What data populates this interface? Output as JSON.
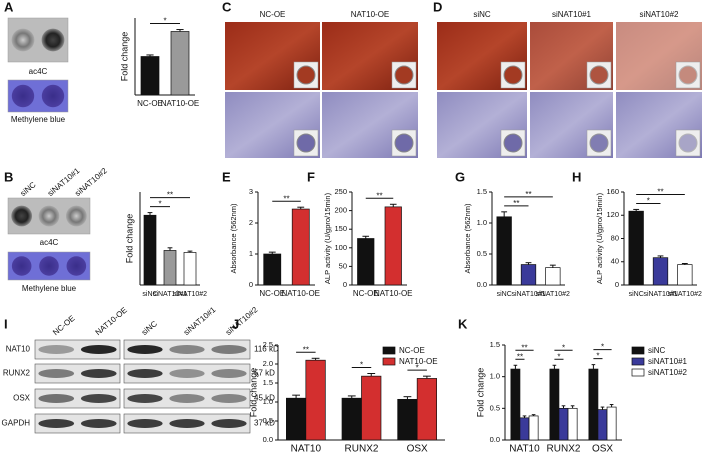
{
  "panels": {
    "letters": [
      "A",
      "B",
      "C",
      "D",
      "E",
      "F",
      "G",
      "H",
      "I",
      "J",
      "K"
    ],
    "A": {
      "blot_labels": [
        "ac4C",
        "Methylene blue"
      ]
    },
    "B": {
      "column_labels": [
        "siNC",
        "siNAT10#1",
        "siNAT10#2"
      ],
      "blot_labels": [
        "ac4C",
        "Methylene blue"
      ]
    },
    "C": {
      "labels": [
        "NC-OE",
        "NAT10-OE"
      ]
    },
    "D": {
      "labels": [
        "siNC",
        "siNAT10#1",
        "siNAT10#2"
      ]
    },
    "I": {
      "columns": [
        "NC-OE",
        "NAT10-OE",
        "siNC",
        "siNAT10#1",
        "siNAT10#2"
      ],
      "rows": [
        "NAT10",
        "RUNX2",
        "OSX",
        "GAPDH"
      ],
      "sizes": [
        "116 kD",
        "57 kD",
        "45 kD",
        "37 kD"
      ]
    }
  },
  "chart_data": [
    {
      "type": "bar",
      "ylabel": "Fold change",
      "categories": [
        "NC-OE",
        "NAT10-OE"
      ],
      "values": [
        1.0,
        1.65
      ],
      "errors": [
        0.04,
        0.05
      ],
      "colors": [
        "#111111",
        "#9a9a9a"
      ],
      "ylim": [
        0,
        2
      ],
      "significance": [
        {
          "from": 0,
          "to": 1,
          "label": "*"
        }
      ]
    },
    {
      "type": "bar",
      "ylabel": "Fold change",
      "categories": [
        "siNC",
        "siNAT10#1",
        "siNAT10#2"
      ],
      "values": [
        1.05,
        0.52,
        0.49
      ],
      "errors": [
        0.04,
        0.04,
        0.02
      ],
      "colors": [
        "#111111",
        "#9a9a9a",
        "#ffffff"
      ],
      "ylim": [
        0,
        1.4
      ],
      "significance": [
        {
          "from": 0,
          "to": 1,
          "label": "*"
        },
        {
          "from": 0,
          "to": 2,
          "label": "**"
        }
      ]
    },
    {
      "type": "bar",
      "ylabel": "Absorbance (562nm)",
      "categories": [
        "NC-OE",
        "NAT10-OE"
      ],
      "values": [
        1.0,
        2.45
      ],
      "errors": [
        0.06,
        0.06
      ],
      "colors": [
        "#111111",
        "#d32f2f"
      ],
      "ylim": [
        0,
        3
      ],
      "yticks": [
        0,
        1,
        2,
        3
      ],
      "significance": [
        {
          "from": 0,
          "to": 1,
          "label": "**"
        }
      ]
    },
    {
      "type": "bar",
      "ylabel": "ALP activity (U/gpro/15min)",
      "categories": [
        "NC-OE",
        "NAT10-OE"
      ],
      "values": [
        125,
        210
      ],
      "errors": [
        6,
        7
      ],
      "colors": [
        "#111111",
        "#d32f2f"
      ],
      "ylim": [
        0,
        250
      ],
      "yticks": [
        0,
        50,
        100,
        150,
        200,
        250
      ],
      "significance": [
        {
          "from": 0,
          "to": 1,
          "label": "**"
        }
      ]
    },
    {
      "type": "bar",
      "ylabel": "Absorbance (562nm)",
      "categories": [
        "siNC",
        "siNAT10#1",
        "siNAT10#2"
      ],
      "values": [
        1.1,
        0.33,
        0.28
      ],
      "errors": [
        0.08,
        0.03,
        0.04
      ],
      "colors": [
        "#111111",
        "#3a3a9a",
        "#ffffff"
      ],
      "ylim": [
        0,
        1.5
      ],
      "yticks": [
        {
          "value": 0,
          "label": "0.0"
        },
        0.5,
        {
          "value": 1,
          "label": "1.0"
        },
        1.5
      ],
      "significance": [
        {
          "from": 0,
          "to": 1,
          "label": "**"
        },
        {
          "from": 0,
          "to": 2,
          "label": "**"
        }
      ]
    },
    {
      "type": "bar",
      "ylabel": "ALP activity (U/gpro/15min)",
      "categories": [
        "siNC",
        "siNAT10#1",
        "siNAT10#2"
      ],
      "values": [
        127,
        47,
        35
      ],
      "errors": [
        3,
        3,
        2
      ],
      "colors": [
        "#111111",
        "#3a3a9a",
        "#ffffff"
      ],
      "ylim": [
        0,
        160
      ],
      "yticks": [
        0,
        40,
        80,
        120,
        160
      ],
      "significance": [
        {
          "from": 0,
          "to": 1,
          "label": "*"
        },
        {
          "from": 0,
          "to": 2,
          "label": "**"
        }
      ]
    },
    {
      "type": "grouped_bar",
      "ylabel": "Fold change",
      "categories": [
        "NAT10",
        "RUNX2",
        "OSX"
      ],
      "series": [
        {
          "name": "NC-OE",
          "color": "#111111",
          "values": [
            1.1,
            1.1,
            1.07
          ],
          "errors": [
            0.08,
            0.06,
            0.07
          ]
        },
        {
          "name": "NAT10-OE",
          "color": "#d32f2f",
          "values": [
            2.1,
            1.68,
            1.62
          ],
          "errors": [
            0.05,
            0.07,
            0.06
          ]
        }
      ],
      "ylim": [
        0,
        2.5
      ],
      "yticks": [
        {
          "value": 0,
          "label": "0.0"
        },
        0.5,
        {
          "value": 1,
          "label": "1.0"
        },
        1.5,
        {
          "value": 2,
          "label": "2.0"
        },
        2.5
      ],
      "legend": "upper right",
      "significance": [
        {
          "group": 0,
          "from": 0,
          "to": 1,
          "label": "**"
        },
        {
          "group": 1,
          "from": 0,
          "to": 1,
          "label": "*"
        },
        {
          "group": 2,
          "from": 0,
          "to": 1,
          "label": "*"
        }
      ]
    },
    {
      "type": "grouped_bar",
      "ylabel": "Fold change",
      "categories": [
        "NAT10",
        "RUNX2",
        "OSX"
      ],
      "series": [
        {
          "name": "siNC",
          "color": "#111111",
          "values": [
            1.12,
            1.12,
            1.12
          ],
          "errors": [
            0.06,
            0.06,
            0.07
          ]
        },
        {
          "name": "siNAT10#1",
          "color": "#3a3a9a",
          "values": [
            0.35,
            0.5,
            0.48
          ],
          "errors": [
            0.03,
            0.04,
            0.04
          ]
        },
        {
          "name": "siNAT10#2",
          "color": "#ffffff",
          "values": [
            0.38,
            0.5,
            0.52
          ],
          "errors": [
            0.02,
            0.04,
            0.04
          ]
        }
      ],
      "ylim": [
        0,
        1.5
      ],
      "yticks": [
        {
          "value": 0,
          "label": "0.0"
        },
        0.5,
        {
          "value": 1,
          "label": "1.0"
        },
        1.5
      ],
      "legend": "right",
      "significance": [
        {
          "group": 0,
          "from": 0,
          "to": 1,
          "label": "**"
        },
        {
          "group": 0,
          "from": 0,
          "to": 2,
          "label": "**"
        },
        {
          "group": 1,
          "from": 0,
          "to": 1,
          "label": "*"
        },
        {
          "group": 1,
          "from": 0,
          "to": 2,
          "label": "*"
        },
        {
          "group": 2,
          "from": 0,
          "to": 1,
          "label": "*"
        },
        {
          "group": 2,
          "from": 0,
          "to": 2,
          "label": "*"
        }
      ]
    }
  ]
}
